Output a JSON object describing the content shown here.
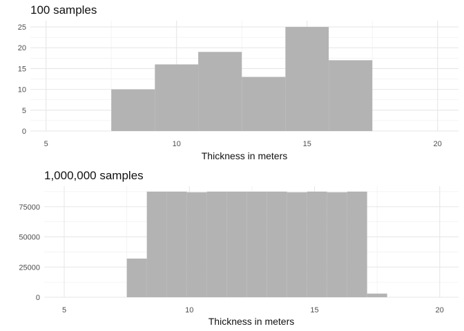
{
  "chart_data": [
    {
      "type": "bar",
      "title": "100 samples",
      "xlabel": "Thickness in meters",
      "ylabel": "",
      "xlim": [
        4.4,
        20.8
      ],
      "ylim": [
        0,
        26.5
      ],
      "xticks": [
        5,
        10,
        15,
        20
      ],
      "yticks": [
        0,
        5,
        10,
        15,
        20,
        25
      ],
      "grid": true,
      "bar_color": "#b3b3b3",
      "bins": [
        {
          "x0": 7.5,
          "x1": 9.17,
          "count": 10
        },
        {
          "x0": 9.17,
          "x1": 10.83,
          "count": 16
        },
        {
          "x0": 10.83,
          "x1": 12.5,
          "count": 19
        },
        {
          "x0": 12.5,
          "x1": 14.17,
          "count": 13
        },
        {
          "x0": 14.17,
          "x1": 15.83,
          "count": 25
        },
        {
          "x0": 15.83,
          "x1": 17.5,
          "count": 17
        }
      ]
    },
    {
      "type": "bar",
      "title": "1,000,000 samples",
      "xlabel": "Thickness in meters",
      "ylabel": "",
      "xlim": [
        4.2,
        20.75
      ],
      "ylim": [
        0,
        92000
      ],
      "xticks": [
        5,
        10,
        15,
        20
      ],
      "yticks": [
        0,
        25000,
        50000,
        75000
      ],
      "grid": true,
      "bar_color": "#b3b3b3",
      "bins": [
        {
          "x0": 7.5,
          "x1": 8.3,
          "count": 32000
        },
        {
          "x0": 8.3,
          "x1": 9.1,
          "count": 87500
        },
        {
          "x0": 9.1,
          "x1": 9.9,
          "count": 87500
        },
        {
          "x0": 9.9,
          "x1": 10.7,
          "count": 87000
        },
        {
          "x0": 10.7,
          "x1": 11.5,
          "count": 87500
        },
        {
          "x0": 11.5,
          "x1": 12.3,
          "count": 87500
        },
        {
          "x0": 12.3,
          "x1": 13.1,
          "count": 87500
        },
        {
          "x0": 13.1,
          "x1": 13.9,
          "count": 87500
        },
        {
          "x0": 13.9,
          "x1": 14.7,
          "count": 87000
        },
        {
          "x0": 14.7,
          "x1": 15.5,
          "count": 87500
        },
        {
          "x0": 15.5,
          "x1": 16.3,
          "count": 87000
        },
        {
          "x0": 16.3,
          "x1": 17.1,
          "count": 87500
        },
        {
          "x0": 17.1,
          "x1": 17.9,
          "count": 3000
        }
      ]
    }
  ]
}
